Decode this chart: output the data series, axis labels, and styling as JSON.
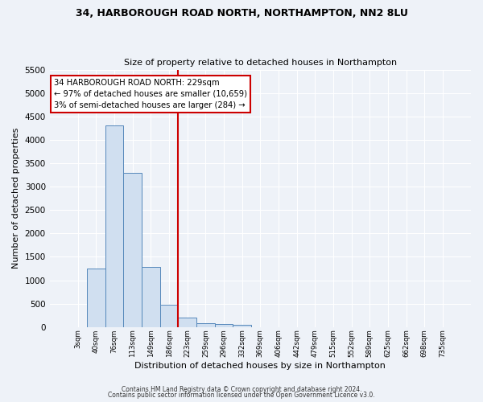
{
  "title": "34, HARBOROUGH ROAD NORTH, NORTHAMPTON, NN2 8LU",
  "subtitle": "Size of property relative to detached houses in Northampton",
  "xlabel": "Distribution of detached houses by size in Northampton",
  "ylabel": "Number of detached properties",
  "bar_color": "#d0dff0",
  "bar_edge_color": "#5588bb",
  "annotation_box_color": "#cc0000",
  "annotation_lines": [
    "34 HARBOROUGH ROAD NORTH: 229sqm",
    "← 97% of detached houses are smaller (10,659)",
    "3% of semi-detached houses are larger (284) →"
  ],
  "red_line_x": 5.5,
  "ylim": [
    0,
    5500
  ],
  "yticks": [
    0,
    500,
    1000,
    1500,
    2000,
    2500,
    3000,
    3500,
    4000,
    4500,
    5000,
    5500
  ],
  "bin_labels": [
    "3sqm",
    "40sqm",
    "76sqm",
    "113sqm",
    "149sqm",
    "186sqm",
    "223sqm",
    "259sqm",
    "296sqm",
    "332sqm",
    "369sqm",
    "406sqm",
    "442sqm",
    "479sqm",
    "515sqm",
    "552sqm",
    "589sqm",
    "625sqm",
    "662sqm",
    "698sqm",
    "735sqm"
  ],
  "bar_heights": [
    0,
    1250,
    4300,
    3300,
    1280,
    480,
    200,
    80,
    60,
    40,
    0,
    0,
    0,
    0,
    0,
    0,
    0,
    0,
    0,
    0,
    0
  ],
  "footnote1": "Contains HM Land Registry data © Crown copyright and database right 2024.",
  "footnote2": "Contains public sector information licensed under the Open Government Licence v3.0.",
  "background_color": "#eef2f8",
  "grid_color": "#ffffff"
}
